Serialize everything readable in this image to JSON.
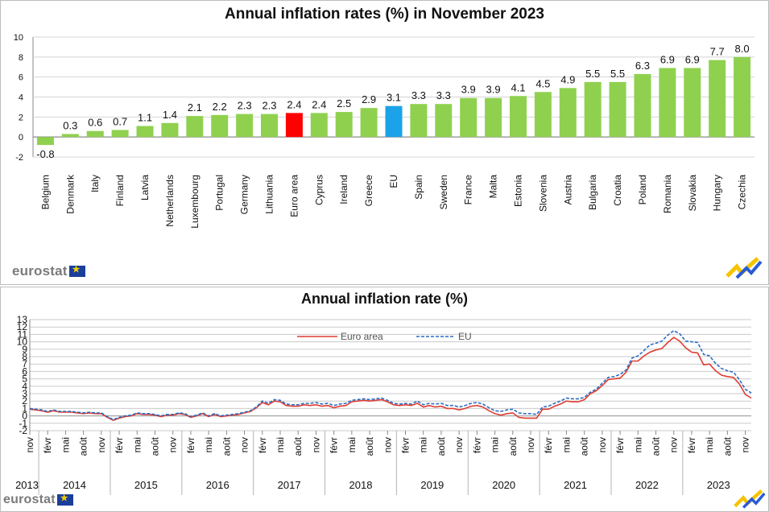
{
  "logo_text": "eurostat",
  "chart_data": [
    {
      "type": "bar",
      "title": "Annual inflation rates (%) in November 2023",
      "xlabel": "",
      "ylabel": "",
      "ylim": [
        -2,
        10
      ],
      "yticks": [
        -2,
        0,
        2,
        4,
        6,
        8,
        10
      ],
      "grid": true,
      "categories": [
        "Belgium",
        "Denmark",
        "Italy",
        "Finland",
        "Latvia",
        "Netherlands",
        "Luxembourg",
        "Portugal",
        "Germany",
        "Lithuania",
        "Euro area",
        "Cyprus",
        "Ireland",
        "Greece",
        "EU",
        "Spain",
        "Sweden",
        "France",
        "Malta",
        "Estonia",
        "Slovenia",
        "Austria",
        "Bulgaria",
        "Croatia",
        "Poland",
        "Romania",
        "Slovakia",
        "Hungary",
        "Czechia"
      ],
      "values": [
        -0.8,
        0.3,
        0.6,
        0.7,
        1.1,
        1.4,
        2.1,
        2.2,
        2.3,
        2.3,
        2.4,
        2.4,
        2.5,
        2.9,
        3.1,
        3.3,
        3.3,
        3.9,
        3.9,
        4.1,
        4.5,
        4.9,
        5.5,
        5.5,
        6.3,
        6.9,
        6.9,
        7.7,
        8.0
      ],
      "value_labels": [
        "-0.8",
        "0.3",
        "0.6",
        "0.7",
        "1.1",
        "1.4",
        "2.1",
        "2.2",
        "2.3",
        "2.3",
        "2.4",
        "2.4",
        "2.5",
        "2.9",
        "3.1",
        "3.3",
        "3.3",
        "3.9",
        "3.9",
        "4.1",
        "4.5",
        "4.9",
        "5.5",
        "5.5",
        "6.3",
        "6.9",
        "6.9",
        "7.7",
        "8.0"
      ],
      "colors": {
        "default": "#8fd14f",
        "Euro area": "#ff0000",
        "EU": "#1aa3e8"
      }
    },
    {
      "type": "line",
      "title": "Annual inflation rate (%)",
      "xlabel": "",
      "ylabel": "",
      "ylim": [
        -2,
        13
      ],
      "yticks": [
        -2,
        -1,
        0,
        1,
        2,
        3,
        4,
        5,
        6,
        7,
        8,
        9,
        10,
        11,
        12,
        13
      ],
      "grid": true,
      "legend_position": "top-center",
      "month_tick_labels": [
        "nov",
        "févr",
        "mai",
        "août",
        "nov",
        "févr",
        "mai",
        "août",
        "nov",
        "févr",
        "mai",
        "août",
        "nov",
        "févr",
        "mai",
        "août",
        "nov",
        "févr",
        "mai",
        "août",
        "nov",
        "févr",
        "mai",
        "août",
        "nov",
        "févr",
        "mai",
        "août",
        "nov",
        "févr",
        "mai",
        "août",
        "nov",
        "févr",
        "mai",
        "août",
        "nov",
        "févr",
        "mai",
        "août",
        "nov"
      ],
      "year_labels": [
        "2013",
        "2014",
        "2015",
        "2016",
        "2017",
        "2018",
        "2019",
        "2020",
        "2021",
        "2022",
        "2023"
      ],
      "series": [
        {
          "name": "Euro area",
          "color": "#e03c31",
          "style": "solid",
          "values": [
            0.9,
            0.8,
            0.7,
            0.5,
            0.7,
            0.5,
            0.5,
            0.5,
            0.4,
            0.3,
            0.4,
            0.3,
            0.3,
            -0.2,
            -0.6,
            -0.3,
            -0.1,
            0.0,
            0.3,
            0.2,
            0.2,
            0.1,
            -0.1,
            0.1,
            0.1,
            0.3,
            0.2,
            -0.2,
            0.0,
            0.3,
            -0.1,
            0.2,
            -0.1,
            0.0,
            0.1,
            0.2,
            0.4,
            0.6,
            1.1,
            1.8,
            1.5,
            2.0,
            1.9,
            1.4,
            1.3,
            1.3,
            1.5,
            1.4,
            1.5,
            1.3,
            1.4,
            1.1,
            1.3,
            1.4,
            1.9,
            2.0,
            2.1,
            2.0,
            2.1,
            2.2,
            1.9,
            1.5,
            1.4,
            1.5,
            1.4,
            1.7,
            1.2,
            1.4,
            1.2,
            1.3,
            1.0,
            1.0,
            0.8,
            1.0,
            1.3,
            1.4,
            1.2,
            0.7,
            0.3,
            0.1,
            0.3,
            0.4,
            -0.2,
            -0.3,
            -0.3,
            -0.3,
            0.9,
            0.9,
            1.3,
            1.6,
            2.0,
            1.9,
            1.9,
            2.2,
            3.0,
            3.4,
            4.1,
            4.9,
            5.0,
            5.1,
            5.9,
            7.4,
            7.4,
            8.1,
            8.6,
            8.9,
            9.1,
            9.9,
            10.6,
            10.1,
            9.2,
            8.6,
            8.5,
            6.9,
            7.0,
            6.1,
            5.5,
            5.3,
            5.2,
            4.3,
            2.9,
            2.4
          ]
        },
        {
          "name": "EU",
          "color": "#2b6cc4",
          "style": "dashed",
          "values": [
            1.0,
            0.9,
            0.8,
            0.6,
            0.8,
            0.6,
            0.6,
            0.6,
            0.5,
            0.4,
            0.5,
            0.4,
            0.4,
            -0.1,
            -0.5,
            -0.2,
            0.0,
            0.1,
            0.4,
            0.3,
            0.3,
            0.2,
            0.0,
            0.2,
            0.2,
            0.4,
            0.3,
            -0.1,
            0.1,
            0.4,
            0.0,
            0.3,
            0.0,
            0.1,
            0.2,
            0.3,
            0.5,
            0.7,
            1.2,
            2.0,
            1.7,
            2.2,
            2.1,
            1.6,
            1.5,
            1.5,
            1.7,
            1.7,
            1.8,
            1.6,
            1.7,
            1.4,
            1.6,
            1.7,
            2.1,
            2.2,
            2.3,
            2.2,
            2.3,
            2.4,
            2.1,
            1.7,
            1.6,
            1.7,
            1.6,
            2.0,
            1.5,
            1.7,
            1.6,
            1.7,
            1.4,
            1.4,
            1.2,
            1.4,
            1.7,
            1.8,
            1.6,
            1.1,
            0.7,
            0.6,
            0.8,
            0.9,
            0.4,
            0.3,
            0.3,
            0.2,
            1.2,
            1.3,
            1.7,
            2.0,
            2.4,
            2.3,
            2.3,
            2.5,
            3.2,
            3.6,
            4.4,
            5.2,
            5.3,
            5.6,
            6.2,
            7.8,
            8.1,
            8.8,
            9.6,
            9.8,
            10.1,
            10.9,
            11.5,
            11.1,
            10.1,
            10.0,
            9.9,
            8.3,
            8.1,
            7.1,
            6.4,
            6.1,
            5.9,
            4.9,
            3.6,
            3.1
          ]
        }
      ]
    }
  ]
}
